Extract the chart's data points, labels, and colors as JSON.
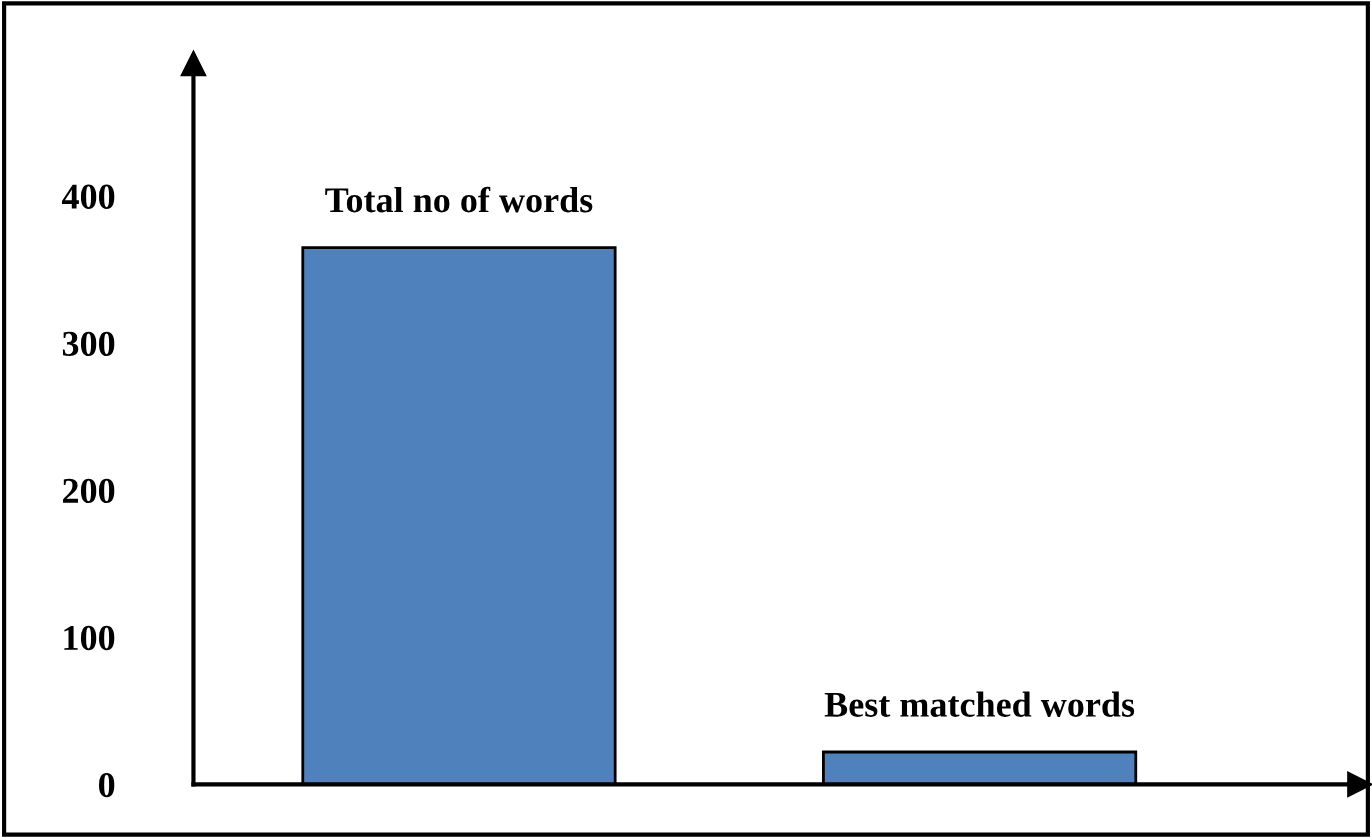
{
  "chart_data": {
    "type": "bar",
    "categories": [
      "Total no of words",
      "Best matched words"
    ],
    "values": [
      365,
      22
    ],
    "color": "#4f81bd",
    "ylim": [
      0,
      490
    ],
    "yticks": [
      0,
      100,
      200,
      300,
      400
    ],
    "grid": false,
    "legend": false
  }
}
